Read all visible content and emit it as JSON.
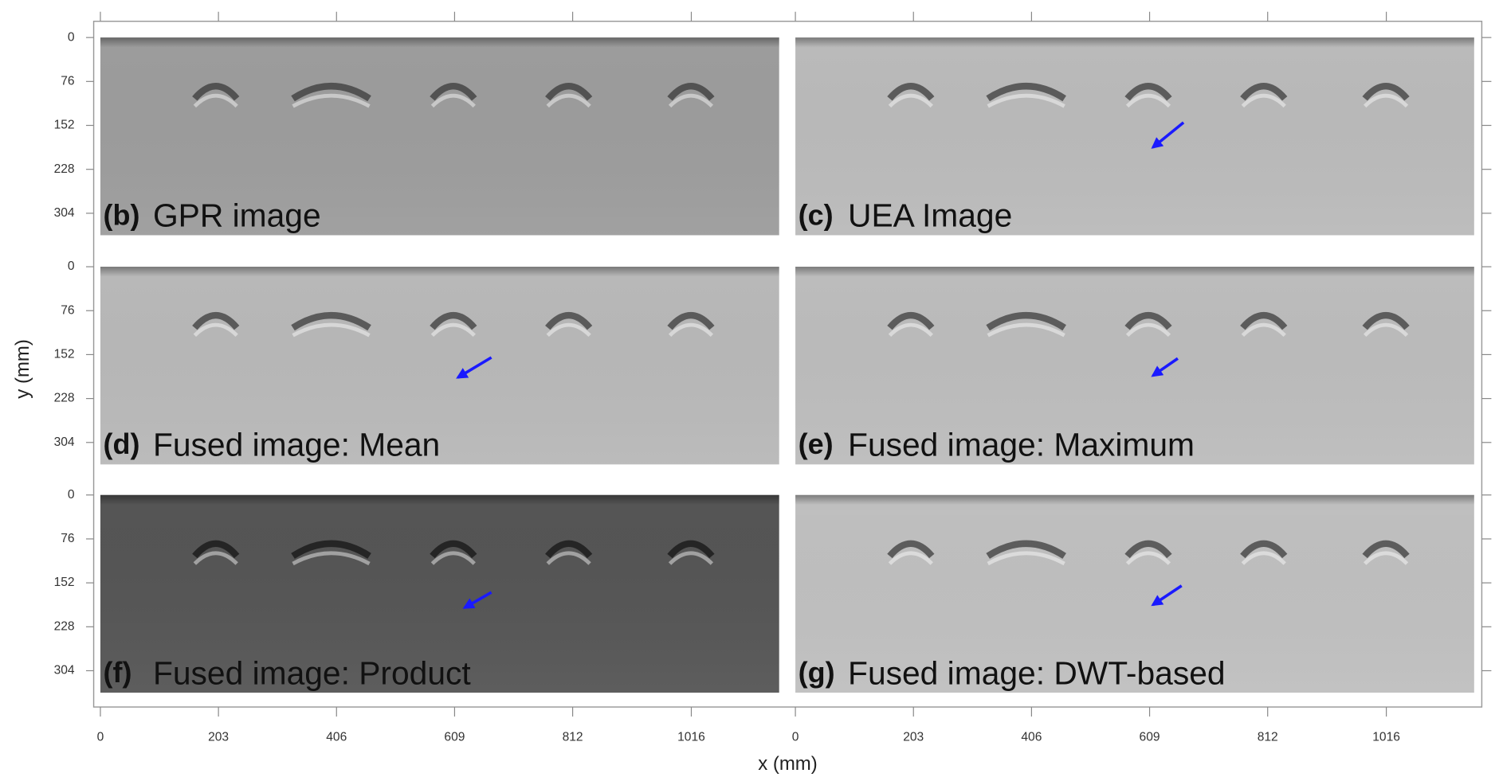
{
  "chart_data": {
    "type": "image-grid",
    "xlabel": "x (mm)",
    "ylabel": "y (mm)",
    "xlim": [
      0,
      1167
    ],
    "ylim": [
      342,
      0
    ],
    "xticks": [
      0,
      203,
      406,
      609,
      812,
      1016
    ],
    "yticks": [
      0,
      76,
      152,
      228,
      304
    ],
    "panels": [
      {
        "letter": "(b)",
        "title": "GPR image",
        "color": "#9c9c9c"
      },
      {
        "letter": "(c)",
        "title": "UEA Image",
        "color": "#bababa"
      },
      {
        "letter": "(d)",
        "title": "Fused image: Mean",
        "color": "#b8b8b8"
      },
      {
        "letter": "(e)",
        "title": "Fused image: Maximum",
        "color": "#bcbcbc"
      },
      {
        "letter": "(f)",
        "title": "Fused image: Product",
        "color": "#555555"
      },
      {
        "letter": "(g)",
        "title": "Fused image: DWT-based",
        "color": "#bfbfbf"
      }
    ]
  }
}
